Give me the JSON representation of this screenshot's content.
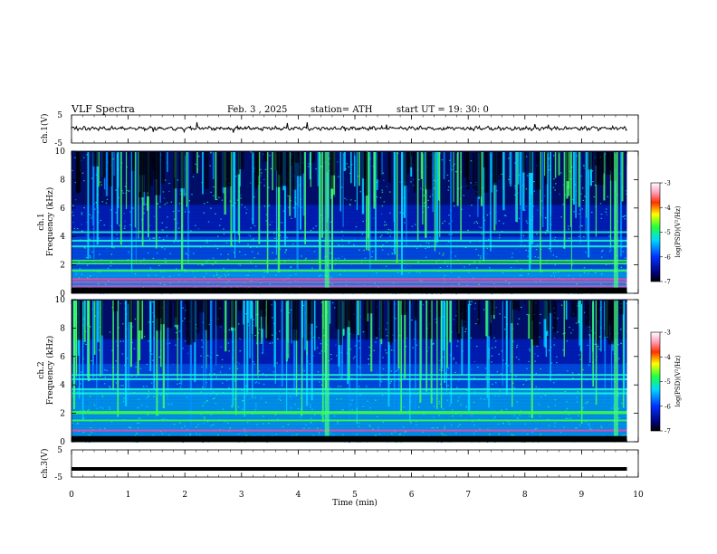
{
  "header": {
    "title": "VLF  Spectra",
    "date": "Feb. 3  , 2025",
    "station": "station= ATH",
    "start_ut": "start  UT  =   19: 30: 0"
  },
  "chart_data": [
    {
      "type": "line",
      "panel": "ch1-waveform",
      "ylabel": "ch.1(V)",
      "yticks": [
        "5",
        "-5"
      ],
      "ylim": [
        -5,
        5
      ],
      "xlim": [
        0,
        10
      ],
      "data_extent_min": [
        0,
        9.8
      ],
      "baseline_v": 0.2,
      "trace_color": "#000000"
    },
    {
      "type": "heatmap",
      "panel": "ch1-spectrogram",
      "ylabel": "ch.1",
      "ylabel2": "Frequency  (kHz)",
      "yticks": [
        "10",
        "8",
        "6",
        "4",
        "2",
        "0"
      ],
      "ylim": [
        0,
        10
      ],
      "xlim": [
        0,
        10
      ],
      "colorbar": {
        "label": "log(PSD)(V²/Hz)",
        "ticks": [
          "-3",
          "-4",
          "-5",
          "-6",
          "-7"
        ],
        "range": [
          -7,
          -3
        ]
      },
      "emission_bands_khz": [
        0.3,
        0.5,
        0.8,
        1.0,
        1.6,
        2.1,
        2.3,
        3.3,
        3.7,
        4.3
      ],
      "impulse_bursts_min": [
        4.5,
        9.6
      ]
    },
    {
      "type": "heatmap",
      "panel": "ch2-spectrogram",
      "ylabel": "ch.2",
      "ylabel2": "Frequency  (kHz)",
      "yticks": [
        "10",
        "8",
        "6",
        "4",
        "2",
        "0"
      ],
      "ylim": [
        0,
        10
      ],
      "xlim": [
        0,
        10
      ],
      "colorbar": {
        "label": "log(PSD)(V²/Hz)",
        "ticks": [
          "-3",
          "-4",
          "-5",
          "-6",
          "-7"
        ],
        "range": [
          -7,
          -3
        ]
      },
      "emission_bands_khz": [
        0.3,
        0.8,
        1.5,
        2.0,
        2.1,
        3.4,
        3.7,
        4.4,
        4.7
      ],
      "impulse_bursts_min": [
        4.5,
        9.6
      ]
    },
    {
      "type": "line",
      "panel": "ch3-waveform",
      "ylabel": "ch.3(V)",
      "yticks": [
        "5",
        "-5"
      ],
      "ylim": [
        -5,
        5
      ],
      "xlim": [
        0,
        10
      ],
      "data_extent_min": [
        0,
        9.8
      ],
      "baseline_v": -2,
      "trace_color": "#000000"
    }
  ],
  "xaxis": {
    "label": "Time  (min)",
    "ticks": [
      "0",
      "1",
      "2",
      "3",
      "4",
      "5",
      "6",
      "7",
      "8",
      "9",
      "10"
    ],
    "xlim": [
      0,
      10
    ]
  }
}
